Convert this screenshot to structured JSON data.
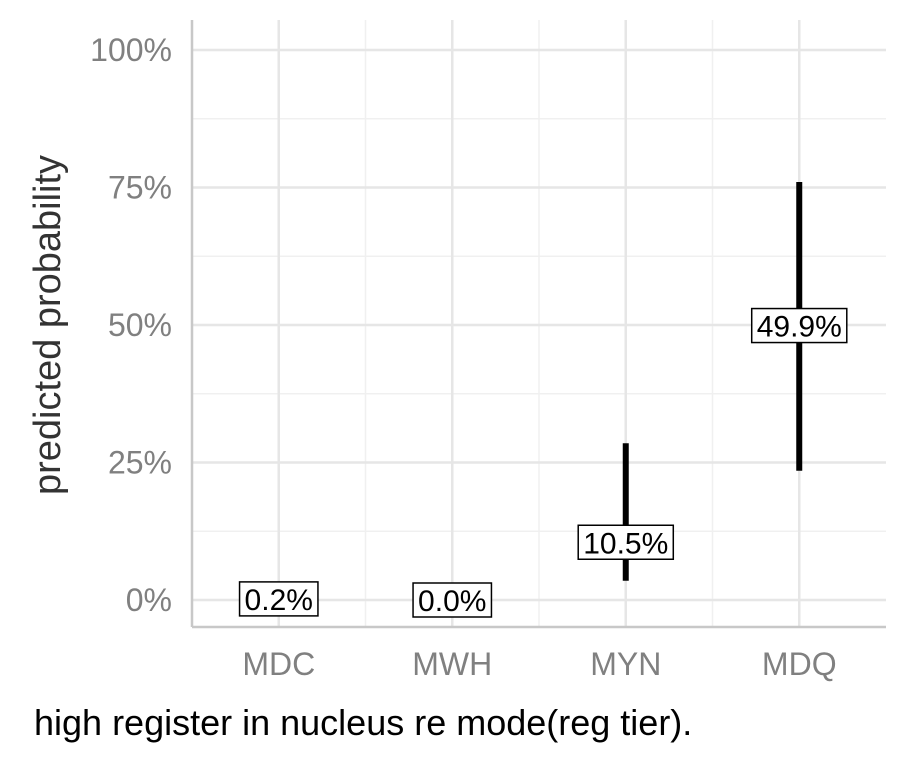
{
  "chart_data": {
    "type": "errorbar",
    "categories": [
      "MDC",
      "MWH",
      "MYN",
      "MDQ"
    ],
    "values": [
      0.2,
      0.0,
      10.5,
      49.9
    ],
    "lower": [
      0.0,
      0.0,
      3.5,
      23.5
    ],
    "upper": [
      0.2,
      0.0,
      28.5,
      76.0
    ],
    "value_labels": [
      "0.2%",
      "0.0%",
      "10.5%",
      "49.9%"
    ],
    "ylabel": "predicted probability",
    "xlabel": "high register in nucleus re mode(reg tier).",
    "yticks": [
      0,
      25,
      50,
      75,
      100
    ],
    "ytick_labels": [
      "0%",
      "25%",
      "50%",
      "75%",
      "100%"
    ],
    "ylim": [
      0,
      100
    ],
    "grid": true,
    "colors": {
      "bar": "#000000",
      "grid": "#e6e6e6",
      "tick": "#808080"
    }
  }
}
